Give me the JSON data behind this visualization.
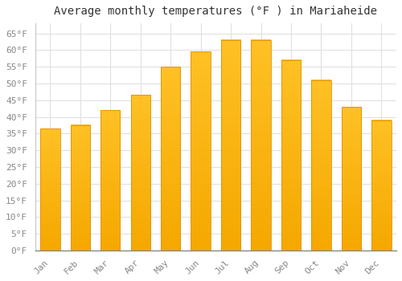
{
  "title": "Average monthly temperatures (°F ) in Mariaheide",
  "months": [
    "Jan",
    "Feb",
    "Mar",
    "Apr",
    "May",
    "Jun",
    "Jul",
    "Aug",
    "Sep",
    "Oct",
    "Nov",
    "Dec"
  ],
  "values": [
    36.5,
    37.5,
    42.0,
    46.5,
    55.0,
    59.5,
    63.0,
    63.0,
    57.0,
    51.0,
    43.0,
    39.0
  ],
  "bar_color_top": "#FFC125",
  "bar_color_bottom": "#F5A800",
  "bar_edge_color": "#E09000",
  "ylim": [
    0,
    68
  ],
  "yticks": [
    0,
    5,
    10,
    15,
    20,
    25,
    30,
    35,
    40,
    45,
    50,
    55,
    60,
    65
  ],
  "ytick_labels": [
    "0°F",
    "5°F",
    "10°F",
    "15°F",
    "20°F",
    "25°F",
    "30°F",
    "35°F",
    "40°F",
    "45°F",
    "50°F",
    "55°F",
    "60°F",
    "65°F"
  ],
  "background_color": "#ffffff",
  "grid_color": "#e0e0e0",
  "title_fontsize": 10,
  "tick_fontsize": 8,
  "tick_color": "#888888",
  "font_family": "monospace",
  "bar_width": 0.65
}
